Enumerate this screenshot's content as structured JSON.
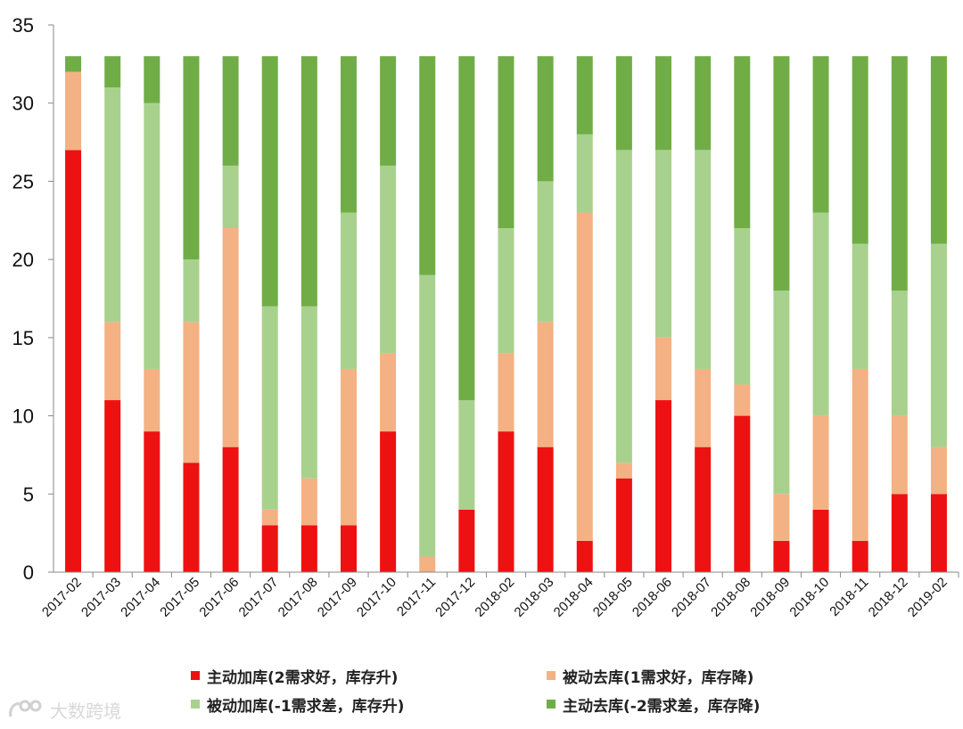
{
  "chart_data": {
    "type": "bar",
    "stacked": true,
    "categories": [
      "2017-02",
      "2017-03",
      "2017-04",
      "2017-05",
      "2017-06",
      "2017-07",
      "2017-08",
      "2017-09",
      "2017-10",
      "2017-11",
      "2017-12",
      "2018-02",
      "2018-03",
      "2018-04",
      "2018-05",
      "2018-06",
      "2018-07",
      "2018-08",
      "2018-09",
      "2018-10",
      "2018-11",
      "2018-12",
      "2019-02"
    ],
    "series": [
      {
        "name": "主动加库(2需求好，库存升)",
        "color": "#ee1111",
        "values": [
          27,
          11,
          9,
          7,
          8,
          3,
          3,
          3,
          9,
          0,
          4,
          9,
          8,
          2,
          6,
          11,
          8,
          10,
          2,
          4,
          2,
          5,
          5
        ]
      },
      {
        "name": "被动去库(1需求好，库存降)",
        "color": "#f4b183",
        "values": [
          5,
          5,
          4,
          9,
          14,
          1,
          3,
          10,
          5,
          1,
          0,
          5,
          8,
          21,
          1,
          4,
          5,
          2,
          3,
          6,
          11,
          5,
          3
        ]
      },
      {
        "name": "被动加库(-1需求差，库存升)",
        "color": "#a9d18e",
        "values": [
          0,
          15,
          17,
          4,
          4,
          13,
          11,
          10,
          12,
          18,
          7,
          8,
          9,
          5,
          20,
          12,
          14,
          10,
          13,
          13,
          8,
          8,
          13
        ]
      },
      {
        "name": "主动去库(-2需求差，库存降)",
        "color": "#70ad47",
        "values": [
          1,
          2,
          3,
          13,
          7,
          16,
          16,
          10,
          7,
          14,
          22,
          11,
          8,
          5,
          6,
          6,
          6,
          11,
          15,
          10,
          12,
          15,
          12
        ]
      }
    ],
    "ylim": [
      0,
      35
    ],
    "yticks": [
      0,
      5,
      10,
      15,
      20,
      25,
      30,
      35
    ],
    "grid": false,
    "legend_position": "bottom"
  },
  "legend": {
    "item1": "主动加库(2需求好，库存升)",
    "item2": "被动去库(1需求好，库存降)",
    "item3": "被动加库(-1需求差，库存升)",
    "item4": "主动去库(-2需求差，库存降)"
  },
  "watermark": {
    "text": "大数跨境"
  }
}
